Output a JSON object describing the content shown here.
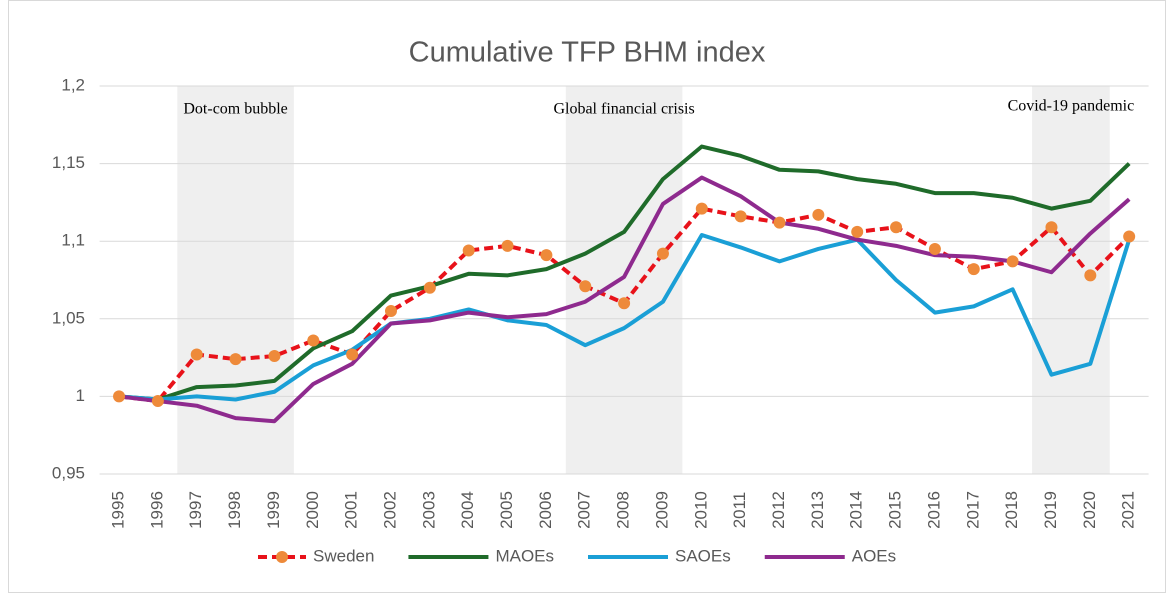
{
  "chart_data": {
    "type": "line",
    "title": "Cumulative TFP BHM index",
    "categories": [
      "1995",
      "1996",
      "1997",
      "1998",
      "1999",
      "2000",
      "2001",
      "2002",
      "2003",
      "2004",
      "2005",
      "2006",
      "2007",
      "2008",
      "2009",
      "2010",
      "2011",
      "2012",
      "2013",
      "2014",
      "2015",
      "2016",
      "2017",
      "2018",
      "2019",
      "2020",
      "2021"
    ],
    "series": [
      {
        "name": "Sweden",
        "color": "#e8121a",
        "marker_color": "#ee8a3a",
        "dashed": true,
        "markers": true,
        "values": [
          1.0,
          0.997,
          1.027,
          1.024,
          1.026,
          1.036,
          1.027,
          1.055,
          1.07,
          1.094,
          1.097,
          1.091,
          1.071,
          1.06,
          1.092,
          1.121,
          1.116,
          1.112,
          1.117,
          1.106,
          1.109,
          1.095,
          1.082,
          1.087,
          1.109,
          1.078,
          1.103
        ]
      },
      {
        "name": "MAOEs",
        "color": "#1f6b2a",
        "values": [
          1.0,
          0.998,
          1.006,
          1.007,
          1.01,
          1.031,
          1.042,
          1.065,
          1.071,
          1.079,
          1.078,
          1.082,
          1.092,
          1.106,
          1.14,
          1.161,
          1.155,
          1.146,
          1.145,
          1.14,
          1.137,
          1.131,
          1.131,
          1.128,
          1.121,
          1.126,
          1.15
        ]
      },
      {
        "name": "SAOEs",
        "color": "#1a9fd6",
        "values": [
          1.0,
          0.998,
          1.0,
          0.998,
          1.003,
          1.02,
          1.03,
          1.047,
          1.05,
          1.056,
          1.049,
          1.046,
          1.033,
          1.044,
          1.061,
          1.104,
          1.096,
          1.087,
          1.095,
          1.101,
          1.075,
          1.054,
          1.058,
          1.069,
          1.014,
          1.021,
          1.101
        ]
      },
      {
        "name": "AOEs",
        "color": "#8e2a8e",
        "values": [
          1.0,
          0.997,
          0.994,
          0.986,
          0.984,
          1.008,
          1.021,
          1.047,
          1.049,
          1.054,
          1.051,
          1.053,
          1.061,
          1.077,
          1.124,
          1.141,
          1.129,
          1.112,
          1.108,
          1.101,
          1.097,
          1.091,
          1.09,
          1.087,
          1.08,
          1.105,
          1.127
        ]
      }
    ],
    "periods": [
      {
        "start": "1997",
        "end": "1999",
        "label": "Dot-com bubble"
      },
      {
        "start": "2007",
        "end": "2009",
        "label": "Global financial crisis"
      },
      {
        "start": "2019",
        "end": "2020",
        "label": "Covid-19 pandemic"
      }
    ],
    "ylim": [
      0.95,
      1.2
    ],
    "yticks": [
      {
        "value": 0.95,
        "label": "0,95"
      },
      1,
      {
        "value": 1.05,
        "label": "1,05"
      },
      {
        "value": 1.1,
        "label": "1,1"
      },
      {
        "value": 1.15,
        "label": "1,15"
      },
      {
        "value": 1.2,
        "label": "1,2"
      }
    ],
    "grid": true,
    "legend": "bottom"
  }
}
